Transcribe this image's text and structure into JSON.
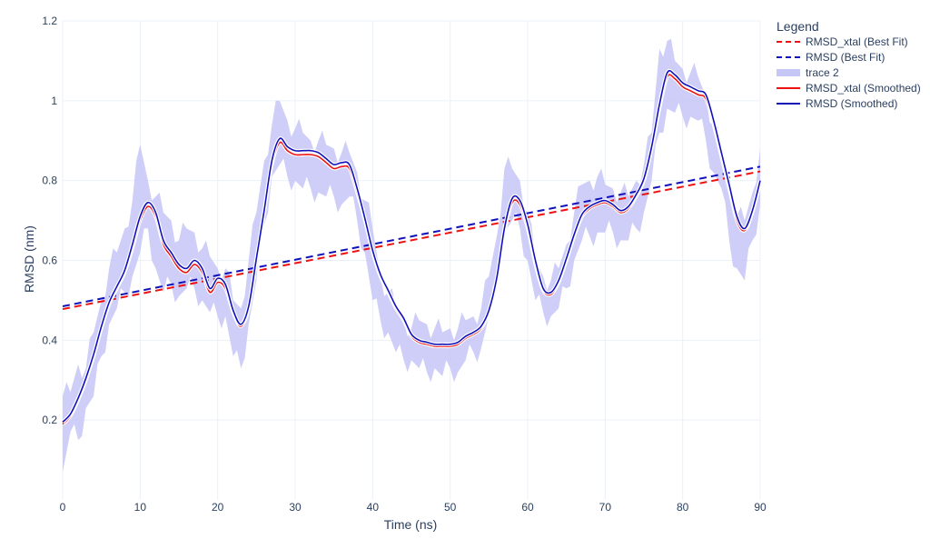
{
  "chart_data": {
    "type": "line",
    "xlabel": "Time (ns)",
    "ylabel": "RMSD (nm)",
    "xlim": [
      0,
      90
    ],
    "ylim": [
      0.0,
      1.2
    ],
    "x_ticks": [
      0,
      10,
      20,
      30,
      40,
      50,
      60,
      70,
      80,
      90
    ],
    "y_ticks": [
      0.2,
      0.4,
      0.6,
      0.8,
      1,
      1.2
    ],
    "grid": true,
    "legend": {
      "title": "Legend",
      "placement": "right"
    },
    "series": [
      {
        "name": "RMSD_xtal (Best Fit)",
        "style": "dashed",
        "color": "#ee1111",
        "x": [
          0,
          90
        ],
        "y": [
          0.478,
          0.823
        ]
      },
      {
        "name": "RMSD (Best Fit)",
        "style": "dashed",
        "color": "#1111bb",
        "x": [
          0,
          90
        ],
        "y": [
          0.485,
          0.835
        ]
      },
      {
        "name": "trace 2",
        "style": "band",
        "color": "#c6c6f7",
        "x": [
          0,
          1,
          2,
          3,
          4,
          5,
          6,
          7,
          8,
          9,
          10,
          11,
          12,
          13,
          14,
          15,
          16,
          17,
          18,
          19,
          20,
          21,
          22,
          23,
          24,
          25,
          26,
          27,
          28,
          29,
          30,
          31,
          32,
          33,
          34,
          35,
          36,
          37,
          38,
          39,
          40,
          41,
          42,
          43,
          44,
          45,
          46,
          47,
          48,
          49,
          50,
          51,
          52,
          53,
          54,
          55,
          56,
          57,
          58,
          59,
          60,
          61,
          62,
          63,
          64,
          65,
          66,
          67,
          68,
          69,
          70,
          71,
          72,
          73,
          74,
          75,
          76,
          77,
          78,
          79,
          80,
          81,
          82,
          83,
          84,
          85,
          86,
          87,
          88,
          89,
          90
        ],
        "lo": [
          0.07,
          0.17,
          0.15,
          0.23,
          0.26,
          0.36,
          0.44,
          0.48,
          0.52,
          0.56,
          0.62,
          0.68,
          0.58,
          0.52,
          0.54,
          0.51,
          0.53,
          0.53,
          0.5,
          0.47,
          0.46,
          0.46,
          0.36,
          0.33,
          0.44,
          0.55,
          0.69,
          0.81,
          0.84,
          0.81,
          0.8,
          0.78,
          0.78,
          0.77,
          0.76,
          0.76,
          0.74,
          0.76,
          0.7,
          0.62,
          0.5,
          0.45,
          0.42,
          0.37,
          0.35,
          0.35,
          0.33,
          0.32,
          0.33,
          0.31,
          0.33,
          0.32,
          0.35,
          0.37,
          0.38,
          0.46,
          0.55,
          0.67,
          0.7,
          0.68,
          0.6,
          0.5,
          0.47,
          0.46,
          0.48,
          0.53,
          0.6,
          0.65,
          0.66,
          0.67,
          0.67,
          0.67,
          0.65,
          0.65,
          0.68,
          0.72,
          0.8,
          0.92,
          0.98,
          0.97,
          0.96,
          0.96,
          0.95,
          0.9,
          0.82,
          0.78,
          0.65,
          0.58,
          0.55,
          0.65,
          0.74
        ],
        "hi": [
          0.26,
          0.27,
          0.34,
          0.33,
          0.42,
          0.5,
          0.58,
          0.62,
          0.68,
          0.75,
          0.89,
          0.8,
          0.76,
          0.72,
          0.7,
          0.65,
          0.68,
          0.67,
          0.63,
          0.61,
          0.58,
          0.58,
          0.5,
          0.48,
          0.6,
          0.72,
          0.85,
          0.94,
          1.0,
          0.95,
          0.93,
          0.92,
          0.9,
          0.9,
          0.89,
          0.88,
          0.87,
          0.87,
          0.82,
          0.75,
          0.68,
          0.56,
          0.52,
          0.48,
          0.45,
          0.43,
          0.45,
          0.44,
          0.43,
          0.42,
          0.43,
          0.43,
          0.45,
          0.46,
          0.48,
          0.56,
          0.66,
          0.83,
          0.83,
          0.8,
          0.72,
          0.6,
          0.56,
          0.55,
          0.58,
          0.64,
          0.72,
          0.79,
          0.8,
          0.81,
          0.79,
          0.78,
          0.77,
          0.76,
          0.8,
          0.84,
          0.92,
          1.13,
          1.15,
          1.1,
          1.08,
          1.07,
          1.06,
          1.01,
          0.94,
          0.87,
          0.79,
          0.71,
          0.7,
          0.77,
          0.88
        ]
      },
      {
        "name": "RMSD_xtal (Smoothed)",
        "style": "solid",
        "color": "#ee1111",
        "x": [
          0,
          1,
          2,
          3,
          4,
          5,
          6,
          7,
          8,
          9,
          10,
          11,
          12,
          13,
          14,
          15,
          16,
          17,
          18,
          19,
          20,
          21,
          22,
          23,
          24,
          25,
          26,
          27,
          28,
          29,
          30,
          31,
          32,
          33,
          34,
          35,
          36,
          37,
          38,
          39,
          40,
          41,
          42,
          43,
          44,
          45,
          46,
          47,
          48,
          49,
          50,
          51,
          52,
          53,
          54,
          55,
          56,
          57,
          58,
          59,
          60,
          61,
          62,
          63,
          64,
          65,
          66,
          67,
          68,
          69,
          70,
          71,
          72,
          73,
          74,
          75,
          76,
          77,
          78,
          79,
          80,
          81,
          82,
          83,
          84,
          85,
          86,
          87,
          88,
          89,
          90
        ],
        "y": [
          0.19,
          0.21,
          0.25,
          0.3,
          0.36,
          0.43,
          0.49,
          0.53,
          0.57,
          0.63,
          0.7,
          0.735,
          0.71,
          0.64,
          0.61,
          0.58,
          0.57,
          0.59,
          0.57,
          0.52,
          0.545,
          0.53,
          0.47,
          0.435,
          0.48,
          0.6,
          0.72,
          0.84,
          0.895,
          0.875,
          0.865,
          0.865,
          0.865,
          0.86,
          0.845,
          0.83,
          0.835,
          0.83,
          0.77,
          0.7,
          0.62,
          0.56,
          0.52,
          0.48,
          0.45,
          0.41,
          0.395,
          0.39,
          0.385,
          0.385,
          0.385,
          0.39,
          0.405,
          0.415,
          0.43,
          0.47,
          0.55,
          0.67,
          0.745,
          0.74,
          0.68,
          0.59,
          0.525,
          0.515,
          0.545,
          0.6,
          0.66,
          0.71,
          0.73,
          0.74,
          0.745,
          0.735,
          0.72,
          0.73,
          0.76,
          0.8,
          0.88,
          0.98,
          1.06,
          1.055,
          1.035,
          1.025,
          1.015,
          1.005,
          0.94,
          0.86,
          0.78,
          0.7,
          0.675,
          0.72,
          0.795
        ]
      },
      {
        "name": "RMSD (Smoothed)",
        "style": "solid",
        "color": "#1111bb",
        "x": [
          0,
          1,
          2,
          3,
          4,
          5,
          6,
          7,
          8,
          9,
          10,
          11,
          12,
          13,
          14,
          15,
          16,
          17,
          18,
          19,
          20,
          21,
          22,
          23,
          24,
          25,
          26,
          27,
          28,
          29,
          30,
          31,
          32,
          33,
          34,
          35,
          36,
          37,
          38,
          39,
          40,
          41,
          42,
          43,
          44,
          45,
          46,
          47,
          48,
          49,
          50,
          51,
          52,
          53,
          54,
          55,
          56,
          57,
          58,
          59,
          60,
          61,
          62,
          63,
          64,
          65,
          66,
          67,
          68,
          69,
          70,
          71,
          72,
          73,
          74,
          75,
          76,
          77,
          78,
          79,
          80,
          81,
          82,
          83,
          84,
          85,
          86,
          87,
          88,
          89,
          90
        ],
        "y": [
          0.195,
          0.215,
          0.255,
          0.305,
          0.365,
          0.435,
          0.495,
          0.535,
          0.575,
          0.64,
          0.71,
          0.745,
          0.72,
          0.65,
          0.62,
          0.59,
          0.58,
          0.6,
          0.58,
          0.53,
          0.555,
          0.54,
          0.475,
          0.44,
          0.485,
          0.605,
          0.725,
          0.85,
          0.905,
          0.885,
          0.875,
          0.875,
          0.875,
          0.87,
          0.855,
          0.84,
          0.845,
          0.84,
          0.78,
          0.705,
          0.625,
          0.565,
          0.525,
          0.485,
          0.455,
          0.415,
          0.4,
          0.395,
          0.39,
          0.39,
          0.39,
          0.395,
          0.41,
          0.42,
          0.435,
          0.475,
          0.555,
          0.68,
          0.755,
          0.75,
          0.69,
          0.6,
          0.53,
          0.52,
          0.55,
          0.605,
          0.665,
          0.715,
          0.735,
          0.745,
          0.75,
          0.74,
          0.725,
          0.735,
          0.765,
          0.805,
          0.885,
          0.99,
          1.07,
          1.065,
          1.045,
          1.035,
          1.025,
          1.015,
          0.95,
          0.87,
          0.79,
          0.71,
          0.68,
          0.725,
          0.8
        ]
      }
    ]
  }
}
